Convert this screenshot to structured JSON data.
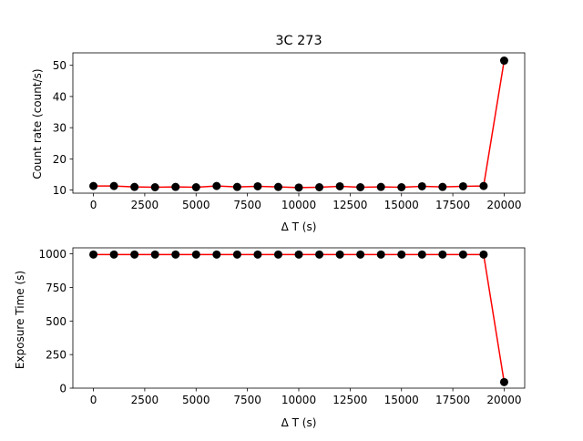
{
  "colors": {
    "line": "#ff0000",
    "marker": "#000000",
    "background": "#ffffff"
  },
  "chart_data": [
    {
      "type": "line",
      "title": "3C 273",
      "xlabel": "Δ T (s)",
      "ylabel": "Count rate (count/s)",
      "xlim": [
        -1000,
        21000
      ],
      "ylim": [
        9,
        54
      ],
      "xticks": [
        0,
        2500,
        5000,
        7500,
        10000,
        12500,
        15000,
        17500,
        20000
      ],
      "xtick_labels": [
        "0",
        "2500",
        "5000",
        "7500",
        "10000",
        "12500",
        "15000",
        "17500",
        "20000"
      ],
      "yticks": [
        10,
        20,
        30,
        40,
        50
      ],
      "ytick_labels": [
        "10",
        "20",
        "30",
        "40",
        "50"
      ],
      "x": [
        0,
        1000,
        2000,
        3000,
        4000,
        5000,
        6000,
        7000,
        8000,
        9000,
        10000,
        11000,
        12000,
        13000,
        14000,
        15000,
        16000,
        17000,
        18000,
        19000,
        20000
      ],
      "y": [
        11.3,
        11.3,
        11.0,
        10.9,
        11.0,
        10.9,
        11.3,
        11.0,
        11.2,
        11.0,
        10.8,
        10.9,
        11.2,
        10.9,
        11.0,
        10.9,
        11.2,
        11.0,
        11.2,
        11.3,
        51.5
      ]
    },
    {
      "type": "line",
      "title": "",
      "xlabel": "Δ T (s)",
      "ylabel": "Exposure Time (s)",
      "xlim": [
        -1000,
        21000
      ],
      "ylim": [
        0,
        1045
      ],
      "xticks": [
        0,
        2500,
        5000,
        7500,
        10000,
        12500,
        15000,
        17500,
        20000
      ],
      "xtick_labels": [
        "0",
        "2500",
        "5000",
        "7500",
        "10000",
        "12500",
        "15000",
        "17500",
        "20000"
      ],
      "yticks": [
        0,
        250,
        500,
        750,
        1000
      ],
      "ytick_labels": [
        "0",
        "250",
        "500",
        "750",
        "1000"
      ],
      "x": [
        0,
        1000,
        2000,
        3000,
        4000,
        5000,
        6000,
        7000,
        8000,
        9000,
        10000,
        11000,
        12000,
        13000,
        14000,
        15000,
        16000,
        17000,
        18000,
        19000,
        20000
      ],
      "y": [
        995,
        995,
        995,
        995,
        995,
        995,
        995,
        995,
        995,
        995,
        995,
        995,
        995,
        995,
        995,
        995,
        995,
        995,
        995,
        995,
        45
      ]
    }
  ]
}
